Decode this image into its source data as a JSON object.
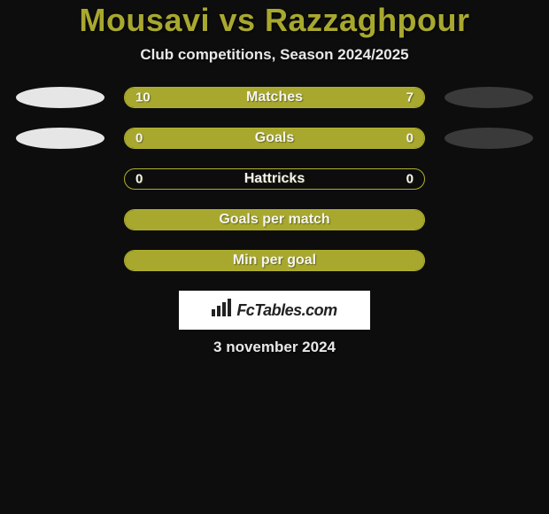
{
  "title": "Mousavi vs Razzaghpour",
  "subtitle": "Club competitions, Season 2024/2025",
  "date": "3 november 2024",
  "brand": "FcTables.com",
  "colors": {
    "accent": "#a8a82f",
    "background": "#0d0d0d",
    "oval_left": "#e6e6e6",
    "oval_right": "#3a3a3a",
    "bar_text": "#f5f5f0",
    "logo_bg": "#ffffff"
  },
  "rows": [
    {
      "label": "Matches",
      "left_val": "10",
      "right_val": "7",
      "left_fill_pct": 59,
      "right_fill_pct": 41,
      "show_left_oval": true,
      "show_right_oval": true
    },
    {
      "label": "Goals",
      "left_val": "0",
      "right_val": "0",
      "left_fill_pct": 50,
      "right_fill_pct": 50,
      "show_left_oval": true,
      "show_right_oval": true
    },
    {
      "label": "Hattricks",
      "left_val": "0",
      "right_val": "0",
      "left_fill_pct": 0,
      "right_fill_pct": 0,
      "show_left_oval": false,
      "show_right_oval": false
    },
    {
      "label": "Goals per match",
      "left_val": "",
      "right_val": "",
      "left_fill_pct": 100,
      "right_fill_pct": 0,
      "show_left_oval": false,
      "show_right_oval": false
    },
    {
      "label": "Min per goal",
      "left_val": "",
      "right_val": "",
      "left_fill_pct": 100,
      "right_fill_pct": 0,
      "show_left_oval": false,
      "show_right_oval": false
    }
  ]
}
